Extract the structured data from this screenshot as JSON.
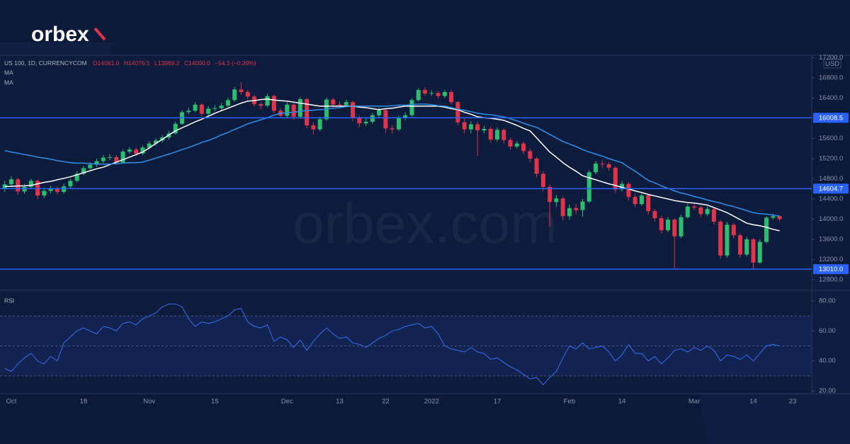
{
  "logo": "orbex",
  "chart_data": {
    "type": "candlestick",
    "symbol": "US 100, 1D, CURRENCYCOM",
    "ohlc_labels": [
      "O14061.0",
      "H14076.5",
      "L13969.2",
      "C14000.0",
      "−54.3 (−0.39%)"
    ],
    "watermark": "orbex.com",
    "currency": "USD",
    "up_color": "#2dbd6e",
    "down_color": "#e0344a",
    "grid": false,
    "categories": [
      null,
      "Oct",
      null,
      null,
      null,
      null,
      null,
      null,
      null,
      null,
      null,
      null,
      "18",
      null,
      null,
      null,
      null,
      null,
      null,
      null,
      null,
      null,
      "Nov",
      null,
      null,
      null,
      null,
      null,
      null,
      null,
      null,
      null,
      "15",
      null,
      null,
      null,
      null,
      null,
      null,
      null,
      null,
      null,
      null,
      "Dec",
      null,
      null,
      null,
      null,
      null,
      null,
      null,
      "13",
      null,
      null,
      null,
      null,
      null,
      null,
      "22",
      null,
      null,
      null,
      null,
      null,
      null,
      "2022",
      null,
      null,
      null,
      null,
      null,
      null,
      null,
      null,
      null,
      "17",
      null,
      null,
      null,
      null,
      null,
      null,
      null,
      null,
      null,
      null,
      "Feb",
      null,
      null,
      null,
      null,
      null,
      null,
      null,
      "14",
      null,
      null,
      null,
      null,
      null,
      null,
      null,
      null,
      null,
      null,
      "Mar",
      null,
      null,
      null,
      null,
      null,
      null,
      null,
      null,
      "14",
      null,
      null,
      null,
      null,
      null,
      "23"
    ],
    "open": [
      14600,
      14690,
      14790,
      14550,
      14640,
      14760,
      14470,
      14560,
      14600,
      14540,
      14650,
      14760,
      14900,
      15010,
      15080,
      15150,
      15220,
      15230,
      15120,
      15340,
      15380,
      15300,
      15420,
      15500,
      15560,
      15620,
      15700,
      15890,
      16120,
      16150,
      16270,
      16090,
      16190,
      16200,
      16250,
      16360,
      16570,
      16520,
      16430,
      16280,
      16250,
      16440,
      16150,
      16050,
      16270,
      16030,
      16380,
      15860,
      15780,
      15980,
      16370,
      16270,
      16260,
      16320,
      16000,
      15900,
      15930,
      16060,
      16160,
      15800,
      15780,
      16000,
      16060,
      16360,
      16560,
      16490,
      16500,
      16440,
      16520,
      16320,
      15920,
      15780,
      15880,
      15760,
      15790,
      15580,
      15770,
      15570,
      15440,
      15500,
      15350,
      15200,
      14900,
      14640,
      14340,
      14410,
      14060,
      14220,
      14180,
      14350,
      14930,
      15100,
      15090,
      15020,
      14590,
      14700,
      14440,
      14300,
      14470,
      14160,
      14020,
      13780,
      13990,
      13660,
      14040,
      14250,
      14230,
      14100,
      14200,
      13950,
      13280,
      13890,
      13680,
      13300,
      13600,
      13140,
      13550,
      14030,
      14060,
      null,
      null
    ],
    "high": [
      14760,
      14850,
      14820,
      14700,
      14800,
      14780,
      14620,
      14660,
      14650,
      14700,
      14800,
      14950,
      15060,
      15130,
      15200,
      15270,
      15290,
      15270,
      15380,
      15430,
      15420,
      15460,
      15550,
      15610,
      15670,
      15750,
      15930,
      16160,
      16210,
      16320,
      16300,
      16240,
      16260,
      16300,
      16410,
      16620,
      16720,
      16560,
      16460,
      16330,
      16490,
      16470,
      16200,
      16320,
      16300,
      16420,
      16400,
      15920,
      16030,
      16410,
      16400,
      16330,
      16370,
      16350,
      16050,
      16000,
      16110,
      16210,
      16190,
      15860,
      16050,
      16120,
      16400,
      16600,
      16610,
      16560,
      16540,
      16560,
      16560,
      16340,
      15990,
      15940,
      15930,
      15850,
      15830,
      15820,
      15800,
      15610,
      15550,
      15540,
      15400,
      15230,
      14950,
      14690,
      14480,
      14450,
      14290,
      14300,
      14400,
      14970,
      15150,
      15160,
      15130,
      15050,
      14760,
      14740,
      14500,
      14520,
      14500,
      14200,
      14070,
      14040,
      14020,
      14090,
      14300,
      14300,
      14270,
      14250,
      14230,
      13990,
      13940,
      13920,
      13720,
      13650,
      13630,
      13600,
      14060,
      14110,
      14080,
      null,
      null
    ],
    "low": [
      14540,
      14640,
      14480,
      14500,
      14600,
      14400,
      14420,
      14510,
      14490,
      14500,
      14620,
      14730,
      14870,
      14980,
      15040,
      15110,
      15170,
      15080,
      15100,
      15300,
      15250,
      15270,
      15390,
      15460,
      15520,
      15580,
      15680,
      15870,
      16080,
      16120,
      16040,
      16050,
      16140,
      16150,
      16220,
      16330,
      16470,
      16380,
      16230,
      16180,
      16220,
      16100,
      16000,
      16010,
      15970,
      15990,
      15800,
      15680,
      15740,
      15950,
      16220,
      16210,
      16220,
      15940,
      15820,
      15850,
      15890,
      16020,
      15710,
      15700,
      15750,
      15960,
      16030,
      16330,
      16440,
      16450,
      16390,
      16400,
      16280,
      15860,
      15700,
      15700,
      15250,
      15700,
      15520,
      15540,
      15500,
      15380,
      15400,
      15290,
      15130,
      14830,
      14560,
      13850,
      14250,
      13980,
      13990,
      14100,
      14050,
      14320,
      14890,
      15020,
      14960,
      14520,
      14550,
      14370,
      14240,
      14270,
      14090,
      13950,
      13720,
      13740,
      13030,
      13620,
      14010,
      14180,
      14040,
      14060,
      13890,
      13220,
      13240,
      13620,
      13240,
      13260,
      13020,
      13120,
      13520,
      13990,
      13960,
      null,
      null
    ],
    "close": [
      14690,
      14790,
      14550,
      14640,
      14760,
      14470,
      14560,
      14600,
      14540,
      14650,
      14760,
      14900,
      15010,
      15080,
      15150,
      15220,
      15230,
      15120,
      15340,
      15380,
      15300,
      15420,
      15500,
      15560,
      15620,
      15700,
      15890,
      16120,
      16150,
      16270,
      16090,
      16190,
      16200,
      16250,
      16360,
      16570,
      16520,
      16430,
      16280,
      16250,
      16440,
      16150,
      16050,
      16270,
      16030,
      16380,
      15860,
      15780,
      15980,
      16370,
      16270,
      16260,
      16320,
      16000,
      15900,
      15930,
      16060,
      16160,
      15800,
      15780,
      16000,
      16060,
      16360,
      16560,
      16490,
      16500,
      16440,
      16520,
      16320,
      15920,
      15780,
      15880,
      15760,
      15790,
      15580,
      15770,
      15570,
      15440,
      15500,
      15350,
      15200,
      14900,
      14640,
      14340,
      14410,
      14060,
      14220,
      14180,
      14350,
      14930,
      15100,
      15090,
      15020,
      14590,
      14700,
      14440,
      14300,
      14470,
      14160,
      14020,
      13780,
      13990,
      13660,
      14040,
      14250,
      14230,
      14100,
      14200,
      13950,
      13280,
      13890,
      13680,
      13300,
      13600,
      13140,
      13550,
      14030,
      14060,
      14000,
      null,
      null
    ],
    "indicators": [
      {
        "name": "MA",
        "color": "#ffffff",
        "values": [
          14650,
          14650,
          14660,
          14660,
          14670,
          14700,
          14730,
          14750,
          14780,
          14810,
          14840,
          14880,
          14920,
          14960,
          15000,
          15030,
          15080,
          15130,
          15180,
          15230,
          15280,
          15330,
          15410,
          15500,
          15580,
          15670,
          15750,
          15810,
          15870,
          15930,
          15980,
          16040,
          16100,
          16150,
          16200,
          16250,
          16300,
          16340,
          16350,
          16370,
          16380,
          16360,
          16350,
          16340,
          16320,
          16300,
          16280,
          16260,
          16240,
          16240,
          16240,
          16240,
          16240,
          16240,
          16220,
          16210,
          16190,
          16170,
          16190,
          16200,
          16220,
          16240,
          16240,
          16240,
          16240,
          16240,
          16240,
          16220,
          16190,
          16170,
          16120,
          16080,
          16030,
          16010,
          16000,
          15980,
          15960,
          15910,
          15860,
          15800,
          15750,
          15610,
          15470,
          15330,
          15230,
          15120,
          15030,
          14950,
          14860,
          14820,
          14780,
          14740,
          14700,
          14670,
          14630,
          14600,
          14560,
          14530,
          14490,
          14460,
          14430,
          14400,
          14370,
          14350,
          14330,
          14320,
          14300,
          14280,
          14230,
          14180,
          14130,
          14060,
          13990,
          13920,
          13890,
          13870,
          13840,
          13800,
          13770,
          null,
          null
        ]
      },
      {
        "name": "MA",
        "color": "#2f8fe8",
        "values": [
          15360,
          15330,
          15310,
          15280,
          15260,
          15230,
          15210,
          15190,
          15160,
          15140,
          15120,
          15110,
          15110,
          15100,
          15090,
          15090,
          15090,
          15100,
          15110,
          15120,
          15120,
          15130,
          15170,
          15210,
          15250,
          15290,
          15330,
          15380,
          15420,
          15470,
          15520,
          15560,
          15610,
          15670,
          15720,
          15780,
          15830,
          15890,
          15930,
          15970,
          16010,
          16060,
          16100,
          16110,
          16120,
          16140,
          16150,
          16160,
          16170,
          16180,
          16200,
          16210,
          16230,
          16240,
          16240,
          16240,
          16240,
          16240,
          16240,
          16250,
          16260,
          16260,
          16270,
          16280,
          16280,
          16270,
          16250,
          16240,
          16210,
          16180,
          16160,
          16130,
          16100,
          16080,
          16070,
          16050,
          16030,
          15990,
          15950,
          15900,
          15860,
          15820,
          15750,
          15680,
          15610,
          15540,
          15490,
          15440,
          15380,
          15330,
          15290,
          15250,
          15200,
          15160,
          15120,
          15030,
          14950,
          14860,
          14770,
          14720,
          14660,
          14610,
          14560,
          14520,
          14490,
          14450,
          14420,
          14380,
          14350,
          14320,
          14280,
          14250,
          14210,
          14170,
          14130,
          14110,
          14100,
          14080,
          14060,
          null,
          null
        ]
      }
    ],
    "levels": [
      16008.5,
      14604.7,
      {
        "value": 13010.0,
        "label": "13010.0"
      }
    ],
    "level_color": "#2962ff",
    "ylim": [
      12618,
      17249
    ],
    "yticks": [
      {
        "value": 12800,
        "label": "12800.0"
      },
      {
        "value": 13200,
        "label": "13200.0"
      },
      {
        "value": 13600,
        "label": "13600.0"
      },
      {
        "value": 14000,
        "label": "14000.0"
      },
      {
        "value": 14400,
        "label": "14400.0"
      },
      {
        "value": 14800,
        "label": "14800.0"
      },
      {
        "value": 15200,
        "label": "15200.0"
      },
      {
        "value": 15600,
        "label": "15600.0"
      },
      {
        "value": 16000,
        "label": "16000.0"
      },
      {
        "value": 16400,
        "label": "16400.0"
      },
      {
        "value": 16800,
        "label": "16800.0"
      },
      {
        "value": 17200,
        "label": "17200.0"
      }
    ],
    "rsi": {
      "name": "RSI",
      "color": "#3a6df0",
      "values": [
        35,
        33,
        38,
        42,
        45,
        40,
        38,
        43,
        40,
        52,
        56,
        60,
        62,
        60,
        58,
        63,
        62,
        60,
        65,
        66,
        64,
        68,
        70,
        72,
        76,
        78,
        78,
        76,
        68,
        63,
        66,
        65,
        66,
        68,
        70,
        74,
        75,
        66,
        63,
        62,
        64,
        53,
        56,
        54,
        49,
        54,
        47,
        53,
        58,
        62,
        58,
        55,
        56,
        52,
        51,
        49,
        52,
        55,
        57,
        60,
        61,
        63,
        64,
        65,
        62,
        63,
        58,
        50,
        48,
        47,
        46,
        49,
        46,
        45,
        41,
        42,
        39,
        36,
        34,
        31,
        28,
        29,
        24,
        29,
        33,
        42,
        50,
        48,
        52,
        48,
        49,
        50,
        46,
        40,
        44,
        51,
        45,
        45,
        40,
        43,
        38,
        42,
        47,
        48,
        46,
        49,
        47,
        50,
        47,
        40,
        44,
        43,
        41,
        44,
        40,
        45,
        50,
        51,
        50,
        null,
        null
      ],
      "levels": [
        70,
        50,
        30
      ],
      "ylim": [
        18.6,
        86.1
      ],
      "yticks": [
        {
          "value": 20,
          "label": "20.00"
        },
        {
          "value": 40,
          "label": "40.00"
        },
        {
          "value": 60,
          "label": "60.00"
        },
        {
          "value": 80,
          "label": "80.00"
        }
      ]
    }
  }
}
